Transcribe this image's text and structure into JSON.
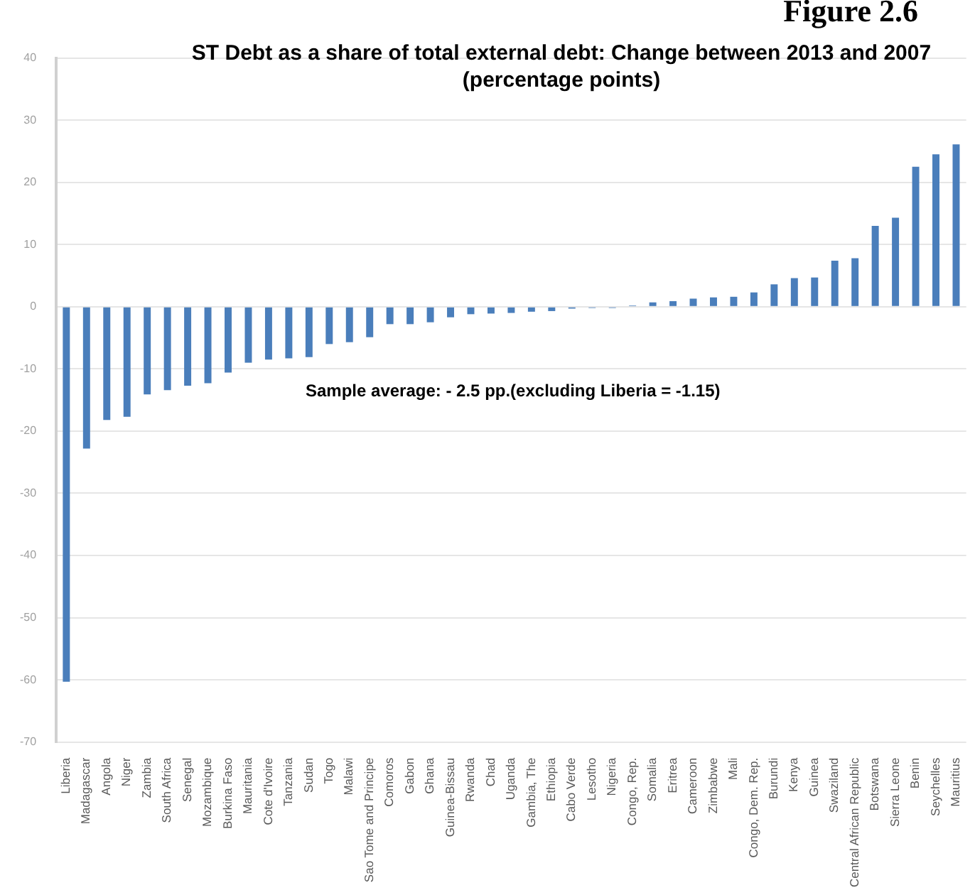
{
  "chart_data": {
    "type": "bar",
    "title": "ST Debt as a share of total external debt: Change between 2013 and 2007 (percentage points)",
    "annotations": [
      "Figure 2.6",
      "Sample average: - 2.5 pp.(excluding Liberia = -1.15)"
    ],
    "categories": [
      "Liberia",
      "Madagascar",
      "Angola",
      "Niger",
      "Zambia",
      "South Africa",
      "Senegal",
      "Mozambique",
      "Burkina Faso",
      "Mauritania",
      "Cote d'Ivoire",
      "Tanzania",
      "Sudan",
      "Togo",
      "Malawi",
      "Sao Tome and Principe",
      "Comoros",
      "Gabon",
      "Ghana",
      "Guinea-Bissau",
      "Rwanda",
      "Chad",
      "Uganda",
      "Gambia, The",
      "Ethiopia",
      "Cabo Verde",
      "Lesotho",
      "Nigeria",
      "Congo, Rep.",
      "Somalia",
      "Eritrea",
      "Cameroon",
      "Zimbabwe",
      "Mali",
      "Congo, Dem. Rep.",
      "Burundi",
      "Kenya",
      "Guinea",
      "Swaziland",
      "Central African Republic",
      "Botswana",
      "Sierra Leone",
      "Benin",
      "Seychelles",
      "Mauritius"
    ],
    "values": [
      -60.3,
      -22.8,
      -18.2,
      -17.7,
      -14.1,
      -13.4,
      -12.7,
      -12.3,
      -10.6,
      -9.0,
      -8.5,
      -8.3,
      -8.1,
      -6.0,
      -5.7,
      -4.9,
      -2.8,
      -2.8,
      -2.5,
      -1.7,
      -1.2,
      -1.1,
      -1.0,
      -0.8,
      -0.7,
      -0.3,
      -0.2,
      -0.2,
      0.2,
      0.7,
      0.9,
      1.3,
      1.5,
      1.6,
      2.3,
      3.6,
      4.6,
      4.7,
      7.4,
      7.8,
      13.0,
      14.3,
      22.5,
      24.5,
      26.1
    ],
    "color": "#4a7ebb",
    "ylim": [
      -70,
      40
    ],
    "yticks": [
      -70,
      -60,
      -50,
      -40,
      -30,
      -20,
      -10,
      0,
      10,
      20,
      30,
      40
    ],
    "grid": "y",
    "legend": false
  }
}
